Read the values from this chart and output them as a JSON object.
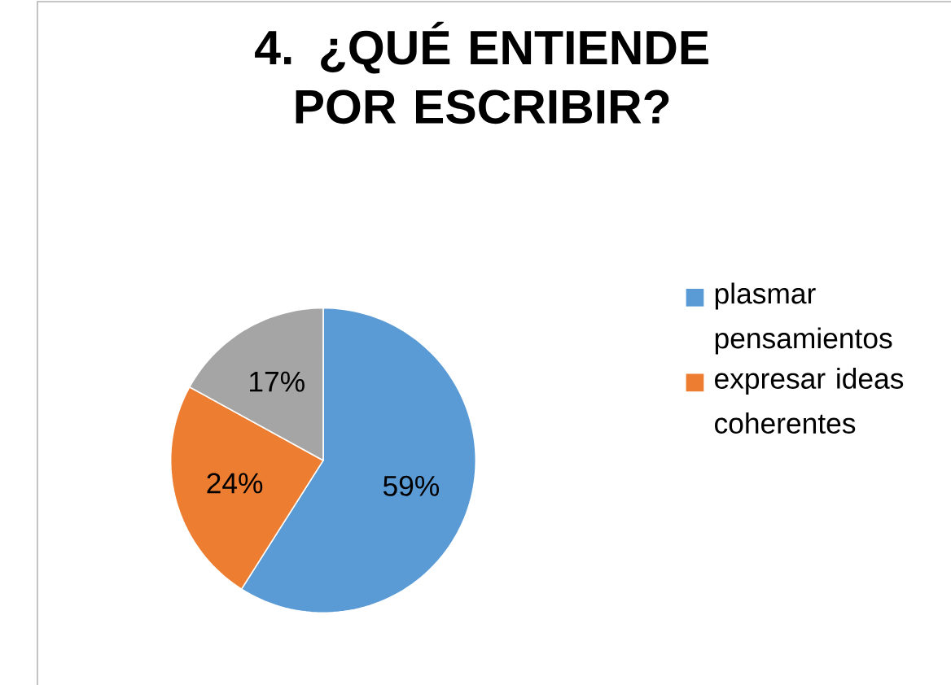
{
  "chart_data": {
    "type": "pie",
    "title": "4. ¿QUÉ ENTIENDE POR ESCRIBIR?",
    "categories": [
      "plasmar pensamientos",
      "expresar ideas coherentes",
      null
    ],
    "values": [
      59,
      24,
      17
    ],
    "colors": [
      "#5b9bd5",
      "#ed7d31",
      "#a5a5a5"
    ],
    "value_labels": [
      "59%",
      "24%",
      "17%"
    ],
    "data_labels": true,
    "legend": "right"
  }
}
